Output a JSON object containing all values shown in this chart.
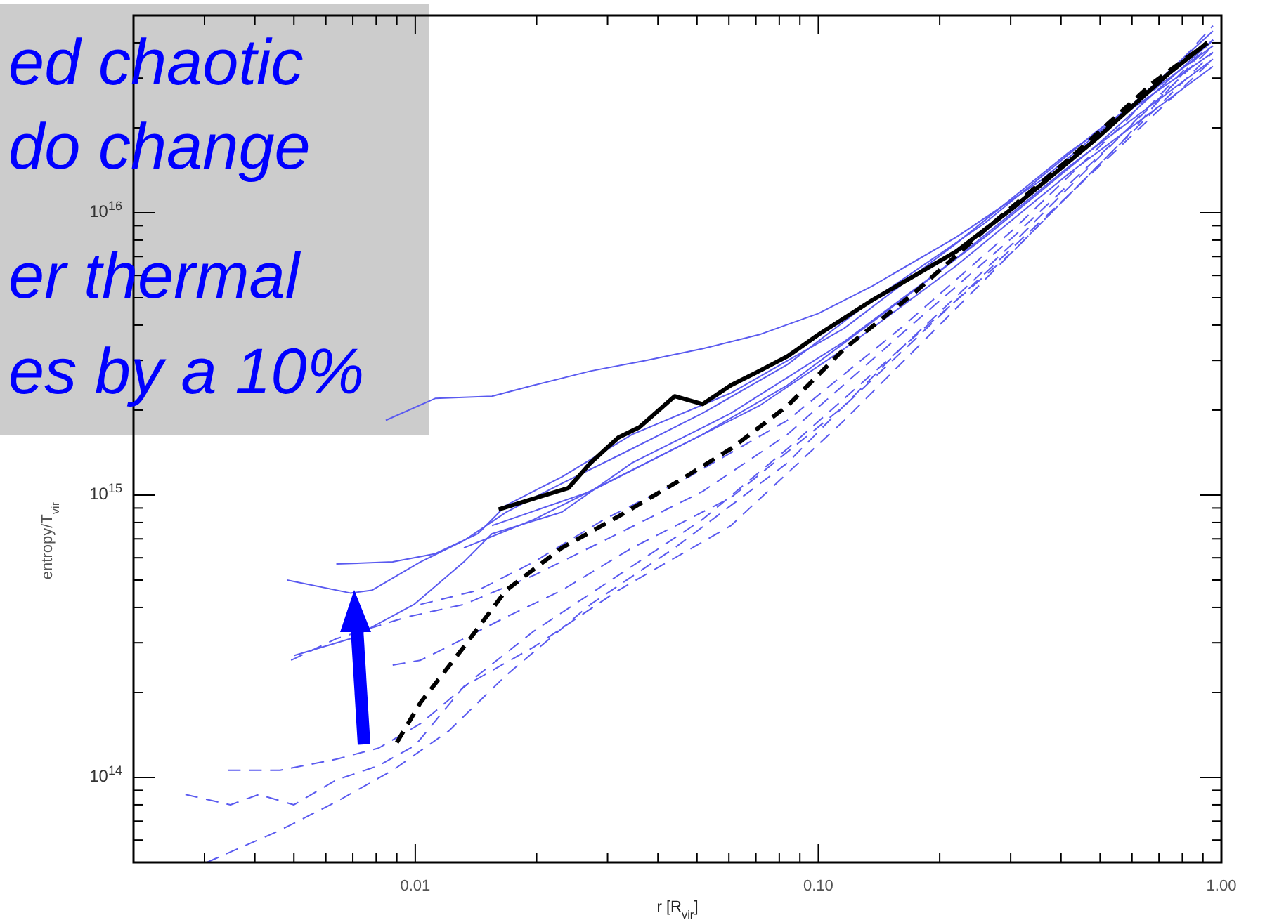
{
  "chart_data": {
    "type": "line",
    "xlabel": "r [R$_{vir}$]",
    "ylabel": "entropy/T$_{vir}$",
    "log": "xy",
    "xlim": [
      0.002,
      1
    ],
    "ylim": [
      50000000000000.0,
      5e+16
    ],
    "xticks": [
      {
        "value": 0.003,
        "label": null
      },
      {
        "value": 0.004,
        "label": null
      },
      {
        "value": 0.005,
        "label": null
      },
      {
        "value": 0.006,
        "label": null
      },
      {
        "value": 0.007,
        "label": null
      },
      {
        "value": 0.008,
        "label": null
      },
      {
        "value": 0.009,
        "label": null
      },
      0.01,
      {
        "value": 0.02,
        "label": null
      },
      {
        "value": 0.03,
        "label": null
      },
      {
        "value": 0.04,
        "label": null
      },
      {
        "value": 0.05,
        "label": null
      },
      {
        "value": 0.06,
        "label": null
      },
      {
        "value": 0.07,
        "label": null
      },
      {
        "value": 0.08,
        "label": null
      },
      {
        "value": 0.09,
        "label": null
      },
      {
        "value": 0.1,
        "label": "0.10"
      },
      {
        "value": 0.2,
        "label": null
      },
      {
        "value": 0.3,
        "label": null
      },
      {
        "value": 0.4,
        "label": null
      },
      {
        "value": 0.5,
        "label": null
      },
      {
        "value": 0.6,
        "label": null
      },
      {
        "value": 0.7,
        "label": null
      },
      {
        "value": 0.8,
        "label": null
      },
      {
        "value": 0.9,
        "label": null
      },
      {
        "value": 1,
        "label": "1.00"
      }
    ],
    "yticks": [
      {
        "value": 60000000000000.0,
        "label": null
      },
      {
        "value": 70000000000000.0,
        "label": null
      },
      {
        "value": 80000000000000.0,
        "label": null
      },
      {
        "value": 90000000000000.0,
        "label": null
      },
      {
        "value": 100000000000000.0,
        "label": "10$^{14}$"
      },
      {
        "value": 200000000000000.0,
        "label": null
      },
      {
        "value": 300000000000000.0,
        "label": null
      },
      {
        "value": 400000000000000.0,
        "label": null
      },
      {
        "value": 500000000000000.0,
        "label": null
      },
      {
        "value": 600000000000000.0,
        "label": null
      },
      {
        "value": 700000000000000.0,
        "label": null
      },
      {
        "value": 800000000000000.0,
        "label": null
      },
      {
        "value": 900000000000000.0,
        "label": null
      },
      {
        "value": 1000000000000000.0,
        "label": "10$^{15}$"
      },
      {
        "value": 2000000000000000.0,
        "label": null
      },
      {
        "value": 3000000000000000.0,
        "label": null
      },
      {
        "value": 4000000000000000.0,
        "label": null
      },
      {
        "value": 5000000000000000.0,
        "label": null
      },
      {
        "value": 6000000000000000.0,
        "label": null
      },
      {
        "value": 7000000000000000.0,
        "label": null
      },
      {
        "value": 8000000000000000.0,
        "label": null
      },
      {
        "value": 9000000000000000.0,
        "label": null
      },
      {
        "value": 1e+16,
        "label": "10$^{16}$"
      },
      {
        "value": 2e+16,
        "label": null
      },
      {
        "value": 3e+16,
        "label": null
      },
      {
        "value": 4e+16,
        "label": null
      }
    ],
    "annotations": [
      "ed chaotic\ndo change\ner thermal\nes by a 10%"
    ],
    "series": [
      {
        "color": "#5a5af0",
        "line_style": "solid",
        "x": [
          0.00845,
          0.0112,
          0.0155,
          0.0197,
          0.0272,
          0.0374,
          0.0516,
          0.0713,
          0.1,
          0.136,
          0.22,
          0.356,
          0.578,
          0.953
        ],
        "values": [
          1840000000000000.0,
          2200000000000000.0,
          2240000000000000.0,
          2450000000000000.0,
          2750000000000000.0,
          3000000000000000.0,
          3300000000000000.0,
          3700000000000000.0,
          4400000000000000.0,
          5500000000000000.0,
          8200000000000000.0,
          1.3e+16,
          2.3e+16,
          4.4e+16
        ]
      },
      {
        "color": "#5a5af0",
        "line_style": "solid",
        "x": [
          0.00481,
          0.0069,
          0.0078,
          0.0103,
          0.0132,
          0.0168,
          0.0231,
          0.0319,
          0.0516,
          0.0838,
          0.136,
          0.259,
          0.492,
          0.953
        ],
        "values": [
          500000000000000.0,
          450000000000000.0,
          460000000000000.0,
          580000000000000.0,
          690000000000000.0,
          870000000000000.0,
          1100000000000000.0,
          1380000000000000.0,
          1950000000000000.0,
          2900000000000000.0,
          4900000000000000.0,
          9200000000000000.0,
          1.95e+16,
          3.9e+16
        ]
      },
      {
        "color": "#5a5af0",
        "line_style": "solid",
        "x": [
          0.00637,
          0.00879,
          0.0112,
          0.0143,
          0.0168,
          0.0231,
          0.0345,
          0.0607,
          0.116,
          0.22,
          0.419,
          0.953
        ],
        "values": [
          570000000000000.0,
          580000000000000.0,
          620000000000000.0,
          730000000000000.0,
          920000000000000.0,
          1160000000000000.0,
          1640000000000000.0,
          2300000000000000.0,
          3900000000000000.0,
          7800000000000000.0,
          1.64e+16,
          3.7e+16
        ]
      },
      {
        "color": "#5a5af0",
        "line_style": "solid",
        "x": [
          0.005,
          0.0069,
          0.00993,
          0.0132,
          0.0155,
          0.0231,
          0.0345,
          0.0607,
          0.116,
          0.22,
          0.419,
          0.953
        ],
        "values": [
          270000000000000.0,
          310000000000000.0,
          410000000000000.0,
          580000000000000.0,
          730000000000000.0,
          870000000000000.0,
          1300000000000000.0,
          1950000000000000.0,
          3500000000000000.0,
          6900000000000000.0,
          1.46e+16,
          3.5e+16
        ]
      },
      {
        "color": "#5a5af0",
        "line_style": "solid",
        "x": [
          0.0132,
          0.0197,
          0.0319,
          0.0516,
          0.0838,
          0.136,
          0.259,
          0.492,
          0.953
        ],
        "values": [
          650000000000000.0,
          820000000000000.0,
          1160000000000000.0,
          1640000000000000.0,
          2450000000000000.0,
          4100000000000000.0,
          8200000000000000.0,
          1.74e+16,
          4.1e+16
        ]
      },
      {
        "color": "#5a5af0",
        "line_style": "solid",
        "x": [
          0.0155,
          0.0272,
          0.044,
          0.0713,
          0.116,
          0.22,
          0.419,
          0.953
        ],
        "values": [
          780000000000000.0,
          1030000000000000.0,
          1460000000000000.0,
          2070000000000000.0,
          3300000000000000.0,
          6500000000000000.0,
          1.38e+16,
          3.3e+16
        ]
      },
      {
        "color": "#5a5af0",
        "line_style": "dashed",
        "x": [
          0.00343,
          0.00462,
          0.00637,
          0.00811,
          0.0103,
          0.0143,
          0.0197,
          0.0319,
          0.0516,
          0.0838,
          0.16,
          0.304,
          0.578,
          0.953
        ],
        "values": [
          106000000000000.0,
          106000000000000.0,
          116000000000000.0,
          127000000000000.0,
          155000000000000.0,
          230000000000000.0,
          330000000000000.0,
          520000000000000.0,
          820000000000000.0,
          1460000000000000.0,
          3300000000000000.0,
          7300000000000000.0,
          1.84e+16,
          4.1e+16
        ]
      },
      {
        "color": "#5a5af0",
        "line_style": "dashed",
        "x": [
          0.00269,
          0.00348,
          0.00409,
          0.005,
          0.00637,
          0.00811,
          0.01,
          0.0132,
          0.0197,
          0.0319,
          0.0607,
          0.116,
          0.259,
          0.492,
          0.953
        ],
        "values": [
          87000000000000.0,
          80000000000000.0,
          87000000000000.0,
          80000000000000.0,
          98000000000000.0,
          110000000000000.0,
          130000000000000.0,
          210000000000000.0,
          290000000000000.0,
          460000000000000.0,
          780000000000000.0,
          1840000000000000.0,
          5800000000000000.0,
          1.46e+16,
          3.7e+16
        ]
      },
      {
        "color": "#5a5af0",
        "line_style": "dashed",
        "x": [
          0.00304,
          0.00462,
          0.00637,
          0.00879,
          0.0121,
          0.0168,
          0.0272,
          0.044,
          0.0838,
          0.16,
          0.304,
          0.578,
          0.953
        ],
        "values": [
          50000000000000.0,
          65000000000000.0,
          82000000000000.0,
          106000000000000.0,
          146000000000000.0,
          230000000000000.0,
          410000000000000.0,
          650000000000000.0,
          1300000000000000.0,
          3300000000000000.0,
          7800000000000000.0,
          1.95e+16,
          3.9e+16
        ]
      },
      {
        "color": "#5a5af0",
        "line_style": "dashed",
        "x": [
          0.00492,
          0.00637,
          0.00953,
          0.0132,
          0.0197,
          0.0294,
          0.0516,
          0.0838,
          0.16,
          0.304,
          0.578,
          0.953
        ],
        "values": [
          260000000000000.0,
          310000000000000.0,
          370000000000000.0,
          410000000000000.0,
          520000000000000.0,
          690000000000000.0,
          1030000000000000.0,
          1640000000000000.0,
          3700000000000000.0,
          8200000000000000.0,
          1.95e+16,
          4.1e+16
        ]
      },
      {
        "color": "#5a5af0",
        "line_style": "dashed",
        "x": [
          0.00879,
          0.0103,
          0.0132,
          0.0168,
          0.0231,
          0.0345,
          0.0607,
          0.116,
          0.22,
          0.419,
          0.953
        ],
        "values": [
          250000000000000.0,
          260000000000000.0,
          310000000000000.0,
          370000000000000.0,
          460000000000000.0,
          650000000000000.0,
          980000000000000.0,
          2070000000000000.0,
          4900000000000000.0,
          1.16e+16,
          3.5e+16
        ]
      },
      {
        "color": "#5a5af0",
        "line_style": "dashed",
        "x": [
          0.0103,
          0.0143,
          0.0197,
          0.0294,
          0.0477,
          0.0838,
          0.16,
          0.304,
          0.578,
          0.953
        ],
        "values": [
          410000000000000.0,
          460000000000000.0,
          580000000000000.0,
          820000000000000.0,
          1160000000000000.0,
          1840000000000000.0,
          3900000000000000.0,
          8700000000000000.0,
          2.1e+16,
          4.6e+16
        ]
      },
      {
        "color": "#000000",
        "line_style": "solid",
        "x": [
          0.0161,
          0.024,
          0.0272,
          0.0319,
          0.036,
          0.044,
          0.0516,
          0.0607,
          0.0713,
          0.0838,
          0.1,
          0.136,
          0.22,
          0.304,
          0.492,
          0.737,
          0.923
        ],
        "values": [
          890000000000000.0,
          1060000000000000.0,
          1300000000000000.0,
          1600000000000000.0,
          1740000000000000.0,
          2240000000000000.0,
          2100000000000000.0,
          2450000000000000.0,
          2750000000000000.0,
          3100000000000000.0,
          3700000000000000.0,
          4900000000000000.0,
          7300000000000000.0,
          1.04e+16,
          1.84e+16,
          3.1e+16,
          4e+16
        ]
      },
      {
        "color": "#000000",
        "line_style": "dashed",
        "x": [
          0.009,
          0.0103,
          0.0132,
          0.0168,
          0.0231,
          0.0319,
          0.044,
          0.0607,
          0.0838,
          0.116,
          0.173,
          0.259,
          0.419,
          0.679,
          0.923
        ],
        "values": [
          133000000000000.0,
          184000000000000.0,
          290000000000000.0,
          460000000000000.0,
          650000000000000.0,
          840000000000000.0,
          1100000000000000.0,
          1460000000000000.0,
          2070000000000000.0,
          3300000000000000.0,
          5200000000000000.0,
          8700000000000000.0,
          1.55e+16,
          2.9e+16,
          4e+16
        ]
      }
    ]
  }
}
